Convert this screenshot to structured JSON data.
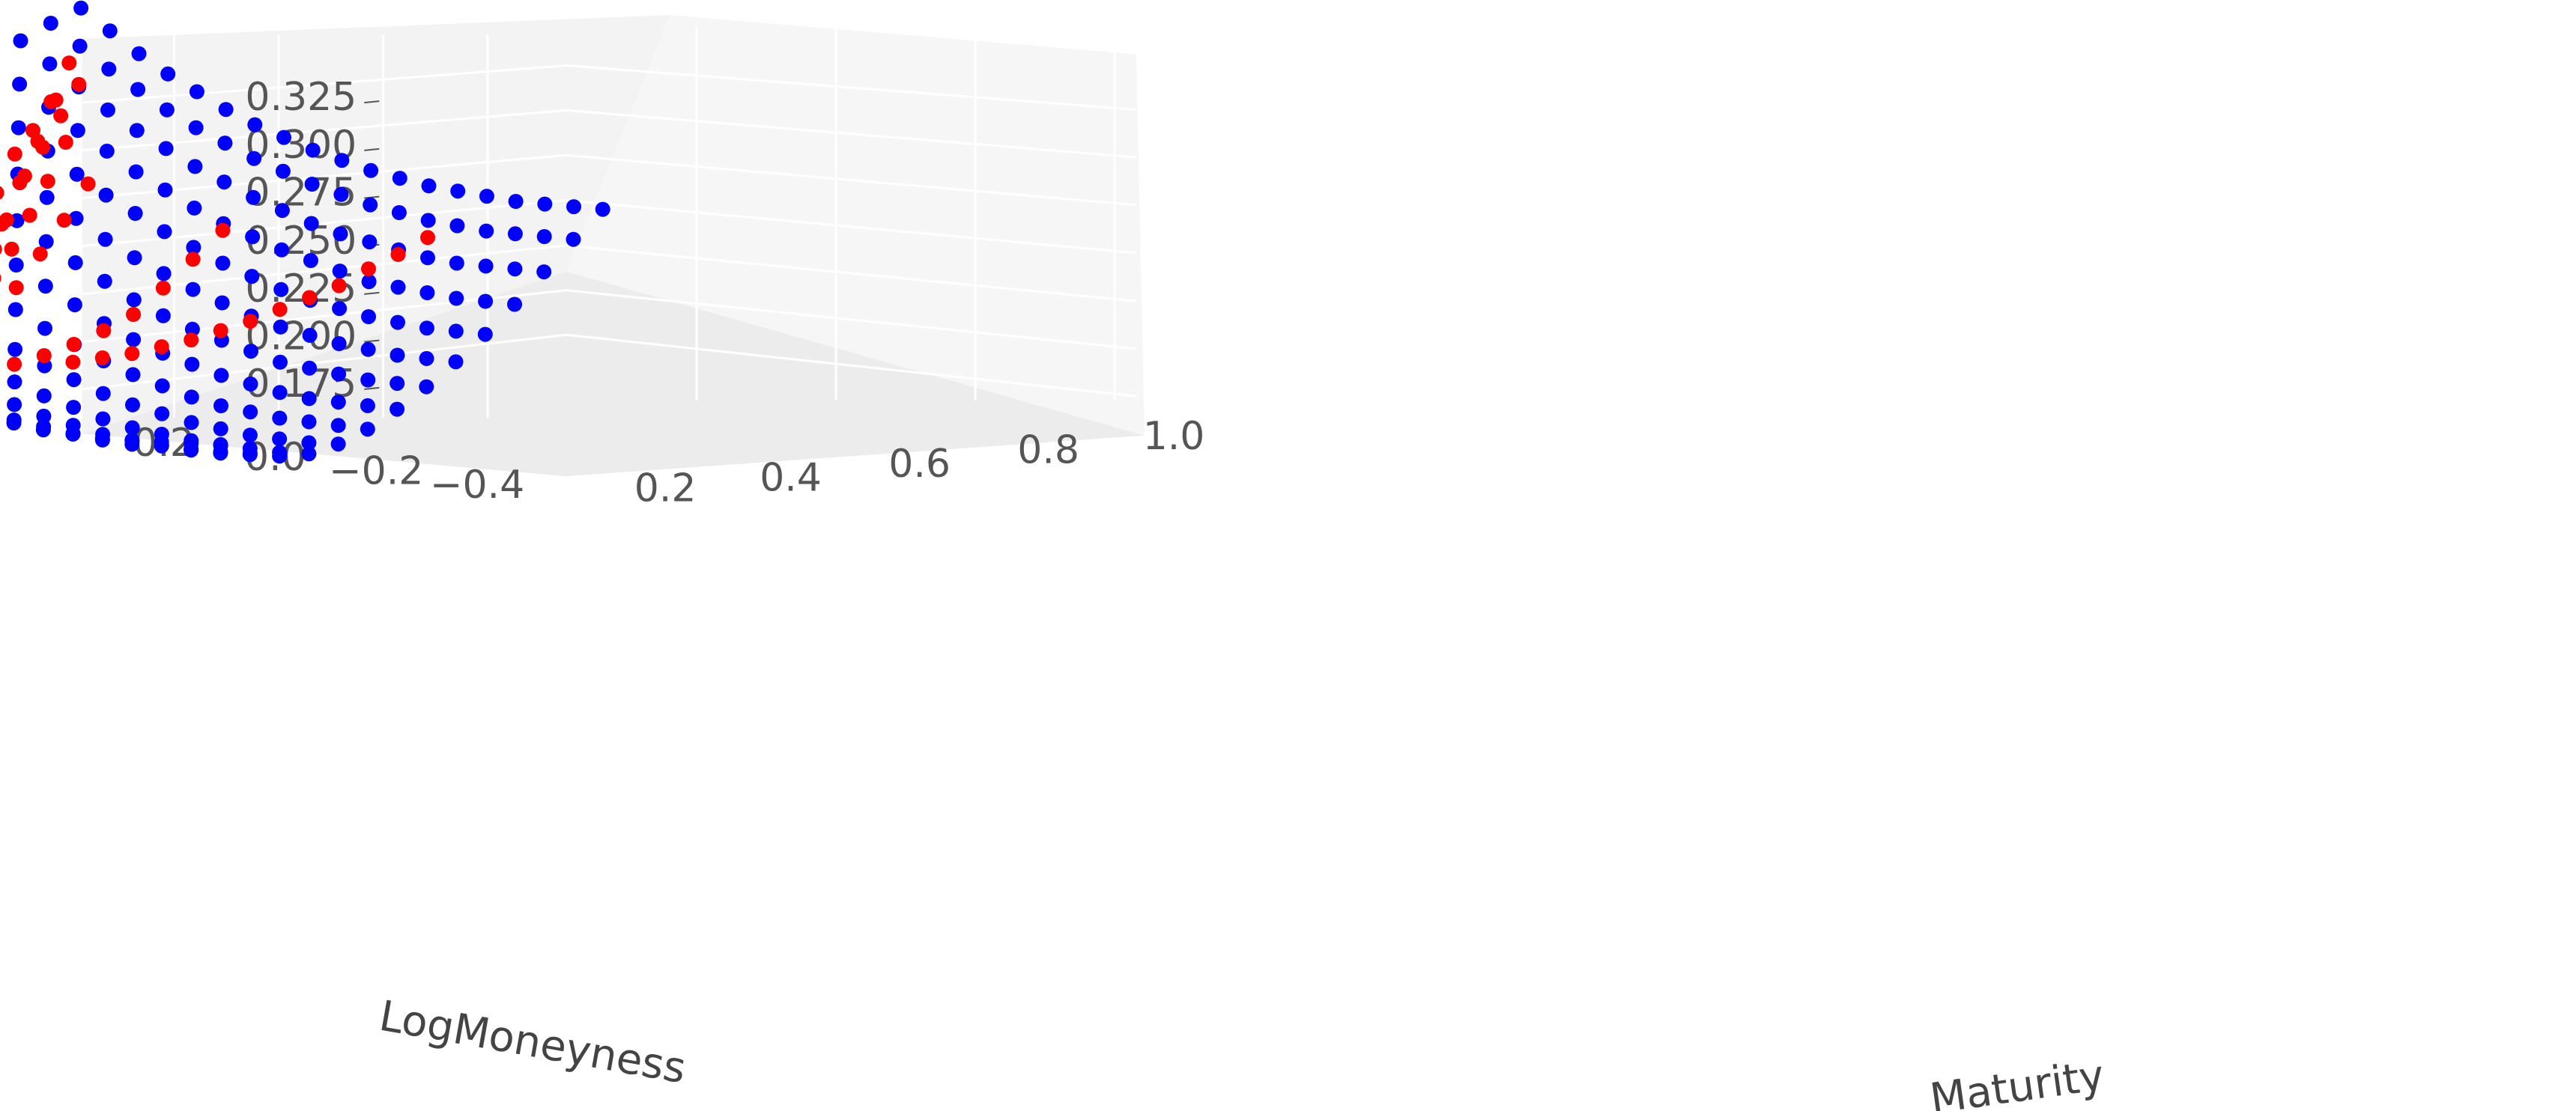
{
  "chart_data": {
    "type": "scatter",
    "projection": "3d",
    "xlabel": "LogMoneyness",
    "ylabel": "Maturity",
    "zlabel": "",
    "x_ticks": [
      "0.2",
      "0.0",
      "−0.2",
      "−0.4"
    ],
    "y_ticks": [
      "0.2",
      "0.4",
      "0.6",
      "0.8",
      "1.0"
    ],
    "z_ticks": [
      "0.175",
      "0.200",
      "0.225",
      "0.250",
      "0.275",
      "0.300",
      "0.325"
    ],
    "x_range": [
      -0.5,
      0.3
    ],
    "y_range": [
      0.0,
      1.0
    ],
    "z_range": [
      0.17,
      0.34
    ],
    "grid": true,
    "colors": {
      "fitted_surface": "#0000ff",
      "market_quotes": "#ff0000",
      "pane": "#f3f3f3",
      "grid": "#ffffff"
    },
    "series": [
      {
        "color": "#0000ff",
        "rows": [
          {
            "x": 0.25,
            "y": 0.05,
            "z": [
              0.338,
              0.329,
              0.32,
              0.312,
              0.305,
              0.298,
              0.292,
              0.287,
              0.282,
              0.278,
              0.274,
              0.271,
              0.268,
              0.266,
              0.264,
              0.262,
              0.261,
              0.26,
              0.259
            ]
          },
          {
            "x": 0.2,
            "y": 0.05,
            "z": [
              0.331,
              0.322,
              0.313,
              0.305,
              0.297,
              0.29,
              0.284,
              0.278,
              0.273,
              0.268,
              0.264,
              0.26,
              0.257,
              0.254,
              0.252,
              0.25,
              0.249,
              0.248,
              0.247
            ]
          },
          {
            "x": 0.15,
            "y": 0.05,
            "z": [
              0.323,
              0.314,
              0.305,
              0.296,
              0.288,
              0.281,
              0.274,
              0.268,
              0.262,
              0.257,
              0.252,
              0.248,
              0.245,
              0.242,
              0.239,
              0.237,
              0.236,
              0.235,
              0.234
            ]
          },
          {
            "x": 0.1,
            "y": 0.05,
            "z": [
              0.314,
              0.305,
              0.296,
              0.287,
              0.279,
              0.271,
              0.264,
              0.257,
              0.251,
              0.246,
              0.241,
              0.237,
              0.233,
              0.229,
              0.227,
              0.225,
              0.223,
              0.222,
              0.221
            ]
          },
          {
            "x": 0.05,
            "y": 0.05,
            "z": [
              0.305,
              0.296,
              0.287,
              0.278,
              0.269,
              0.261,
              0.254,
              0.247,
              0.241,
              0.235,
              0.23,
              0.225,
              0.221,
              0.218,
              0.215,
              0.213,
              0.211,
              0.21,
              0.209
            ]
          },
          {
            "x": 0.0,
            "y": 0.05,
            "z": [
              0.296,
              0.287,
              0.277,
              0.268,
              0.259,
              0.251,
              0.243,
              0.236,
              0.23,
              0.224,
              0.219,
              0.214,
              0.21,
              0.207,
              0.204,
              0.202,
              0.2,
              0.199,
              0.198
            ]
          },
          {
            "x": -0.05,
            "y": 0.05,
            "z": [
              0.287,
              0.277,
              0.267,
              0.258,
              0.249,
              0.241,
              0.233,
              0.226,
              0.219,
              0.213,
              0.208,
              0.204,
              0.2,
              0.196,
              0.194,
              0.192,
              0.19,
              0.189,
              0.188
            ]
          },
          {
            "x": -0.1,
            "y": 0.05,
            "z": [
              0.277,
              0.267,
              0.257,
              0.248,
              0.239,
              0.231,
              0.223,
              0.216,
              0.209,
              0.203,
              0.198,
              0.194,
              0.19,
              0.187,
              0.184,
              0.182,
              0.181,
              0.18,
              0.179
            ]
          },
          {
            "x": -0.15,
            "y": 0.05,
            "z": [
              0.268,
              0.258,
              0.248,
              0.238,
              0.229,
              0.221,
              0.213,
              0.206,
              0.2,
              0.194,
              0.189,
              0.185,
              0.181,
              0.178,
              0.176,
              0.174,
              0.173,
              0.172,
              0.171
            ]
          },
          {
            "x": -0.2,
            "y": 0.05,
            "z": [
              0.259,
              0.249,
              0.239,
              0.229,
              0.22,
              0.212,
              0.204,
              0.197,
              0.191,
              0.186,
              0.181,
              0.177,
              0.174,
              0.171,
              0.169,
              0.167,
              0.166,
              0.165,
              0.165
            ]
          },
          {
            "x": -0.25,
            "y": 0.05,
            "z": [
              0.251,
              0.241,
              0.231,
              0.221,
              0.212,
              0.204,
              0.197,
              0.19,
              0.184,
              0.179,
              0.175,
              0.171,
              0.168,
              0.166,
              0.164,
              0.163,
              0.162,
              0.161,
              0.161
            ]
          },
          {
            "x": -0.3,
            "y": 0.05,
            "z": [
              0.244,
              0.234,
              0.224,
              0.215,
              0.206,
              0.198,
              0.191,
              0.185,
              0.179,
              0.175,
              0.171,
              0.168,
              0.165,
              0.163,
              0.162,
              0.161,
              0.16,
              0.16,
              0.16
            ]
          },
          {
            "x": -0.35,
            "y": 0.05,
            "z": [
              0.238,
              0.228,
              0.219,
              0.21,
              0.202,
              0.194,
              0.188,
              0.182,
              0.177,
              0.173,
              0.169,
              0.167,
              0.165,
              0.163,
              0.162,
              0.162,
              0.161,
              0.161,
              0.161
            ]
          },
          {
            "x": -0.4,
            "y": 0.05,
            "z": [
              0.233,
              0.224,
              0.215,
              0.207,
              0.199,
              0.192,
              0.186,
              0.181,
              0.177,
              0.173,
              0.17,
              0.168,
              0.166,
              0.165,
              0.164,
              0.164,
              0.164,
              0.164,
              0.164
            ]
          }
        ]
      },
      {
        "color": "#ff0000",
        "curves": [
          {
            "y": 0.04,
            "x": [
              0.24,
              0.21,
              0.18,
              0.15,
              0.12,
              0.09,
              0.06,
              0.03,
              0.01,
              -0.01,
              -0.03,
              -0.05,
              -0.07,
              -0.09,
              -0.11,
              -0.13
            ],
            "z": [
              0.316,
              0.3,
              0.288,
              0.278,
              0.262,
              0.244,
              0.233,
              0.232,
              0.227,
              0.221,
              0.212,
              0.199,
              0.196,
              0.198,
              0.201,
              0.193
            ]
          },
          {
            "y": 0.09,
            "x": [
              0.17,
              0.14,
              0.11,
              0.08,
              0.05,
              0.03,
              0.01,
              -0.01,
              -0.03,
              -0.05,
              -0.07,
              -0.09,
              -0.11,
              -0.13,
              -0.15
            ],
            "z": [
              0.3,
              0.283,
              0.266,
              0.249,
              0.231,
              0.228,
              0.222,
              0.211,
              0.206,
              0.206,
              0.201,
              0.19,
              0.184,
              0.176,
              0.172
            ]
          },
          {
            "y": 0.15,
            "x": [
              0.15,
              0.12,
              0.09,
              0.06,
              0.03,
              0.01,
              -0.01,
              -0.03,
              -0.05,
              -0.07,
              -0.09,
              -0.11,
              -0.13,
              -0.15,
              -0.17
            ],
            "z": [
              0.306,
              0.293,
              0.28,
              0.268,
              0.25,
              0.238,
              0.226,
              0.212,
              0.203,
              0.198,
              0.194,
              0.19,
              0.187,
              0.184,
              0.18
            ]
          },
          {
            "y": 0.2,
            "x": [
              0.08,
              0.05,
              0.02,
              -0.01,
              -0.04,
              -0.07,
              -0.1,
              -0.13,
              -0.16,
              -0.19,
              -0.22,
              -0.25,
              -0.28
            ],
            "z": [
              0.282,
              0.266,
              0.252,
              0.238,
              0.226,
              0.213,
              0.205,
              0.202,
              0.197,
              0.193,
              0.19,
              0.187,
              0.185
            ]
          },
          {
            "y": 0.3,
            "x": [
              0.02,
              -0.02,
              -0.06,
              -0.1,
              -0.14,
              -0.18,
              -0.22,
              -0.26,
              -0.3,
              -0.34,
              -0.38
            ],
            "z": [
              0.265,
              0.25,
              0.236,
              0.222,
              0.212,
              0.205,
              0.2,
              0.196,
              0.193,
              0.19,
              0.188
            ]
          },
          {
            "y": 0.5,
            "x": [
              0.05,
              0.0,
              -0.05,
              -0.1,
              -0.15,
              -0.2,
              -0.25,
              -0.3,
              -0.35,
              -0.4,
              -0.45
            ],
            "z": [
              0.248,
              0.236,
              0.224,
              0.213,
              0.206,
              0.2,
              0.195,
              0.191,
              0.188,
              0.186,
              0.185
            ]
          },
          {
            "y": 0.75,
            "x": [
              0.15,
              0.1,
              0.05,
              0.0,
              -0.05,
              -0.1,
              -0.15,
              -0.2,
              -0.25,
              -0.3,
              -0.35,
              -0.4,
              -0.45
            ],
            "z": [
              0.247,
              0.24,
              0.234,
              0.227,
              0.222,
              0.217,
              0.212,
              0.208,
              0.204,
              0.201,
              0.198,
              0.196,
              0.194
            ]
          }
        ]
      }
    ]
  }
}
